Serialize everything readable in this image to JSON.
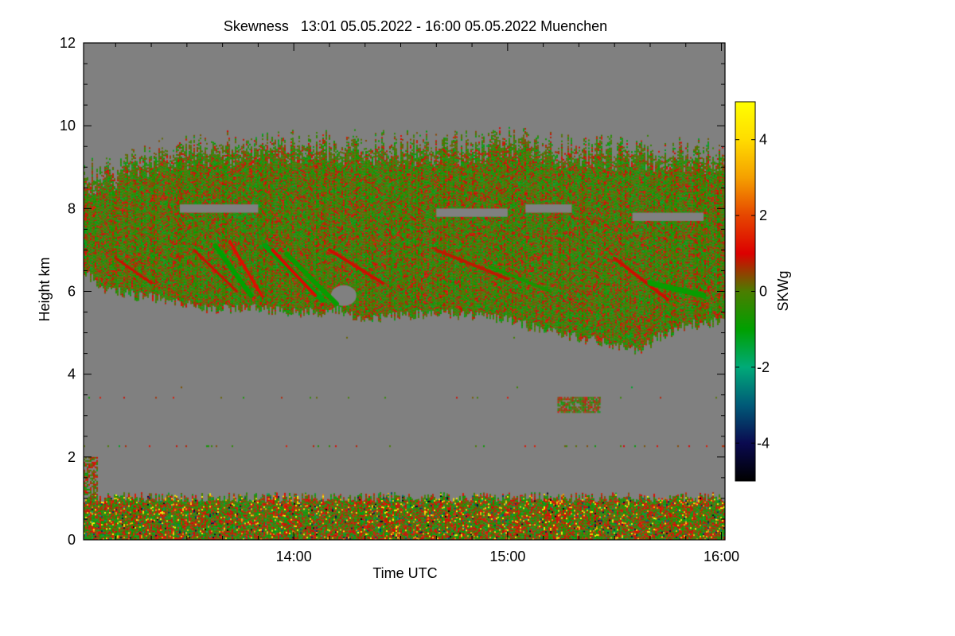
{
  "chart_data": {
    "type": "heatmap",
    "title": "Skewness   13:01 05.05.2022 - 16:00 05.05.2022 Muenchen",
    "xlabel": "Time UTC",
    "ylabel": "Height km",
    "x_range_minutes_utc": [
      781,
      961
    ],
    "x_ticks": [
      {
        "label": "14:00",
        "minutes": 840
      },
      {
        "label": "15:00",
        "minutes": 900
      },
      {
        "label": "16:00",
        "minutes": 960
      }
    ],
    "ylim": [
      0,
      12
    ],
    "y_ticks": [
      0,
      2,
      4,
      6,
      8,
      10,
      12
    ],
    "background_value": "no data",
    "colorbar": {
      "label": "SKWg",
      "range": [
        -5,
        5
      ],
      "ticks": [
        -4,
        -2,
        0,
        2,
        4
      ],
      "stops": [
        {
          "value": -5,
          "color": "#000000"
        },
        {
          "value": -4,
          "color": "#0a0a50"
        },
        {
          "value": -3,
          "color": "#005a78"
        },
        {
          "value": -2,
          "color": "#00aa78"
        },
        {
          "value": -1,
          "color": "#00a000"
        },
        {
          "value": 0,
          "color": "#4b7d00"
        },
        {
          "value": 1,
          "color": "#dc0000"
        },
        {
          "value": 2,
          "color": "#e64600"
        },
        {
          "value": 3,
          "color": "#f5a000"
        },
        {
          "value": 4,
          "color": "#ffdc00"
        },
        {
          "value": 5,
          "color": "#ffff00"
        }
      ]
    },
    "features": [
      {
        "name": "cirrus layer",
        "height_km": [
          4.6,
          9.8
        ],
        "time_utc": [
          "13:01",
          "16:00"
        ],
        "skewness": "mostly near 0, streaks of -1 and +1"
      },
      {
        "name": "boundary layer noise",
        "height_km": [
          0.0,
          1.1
        ],
        "time_utc": [
          "13:01",
          "16:00"
        ],
        "skewness": "scattered -5 to +5"
      },
      {
        "name": "small cloud fragment",
        "height_km": [
          3.1,
          3.4
        ],
        "time_utc": [
          "15:14",
          "15:25"
        ],
        "skewness": "near 0 to +1"
      }
    ]
  }
}
